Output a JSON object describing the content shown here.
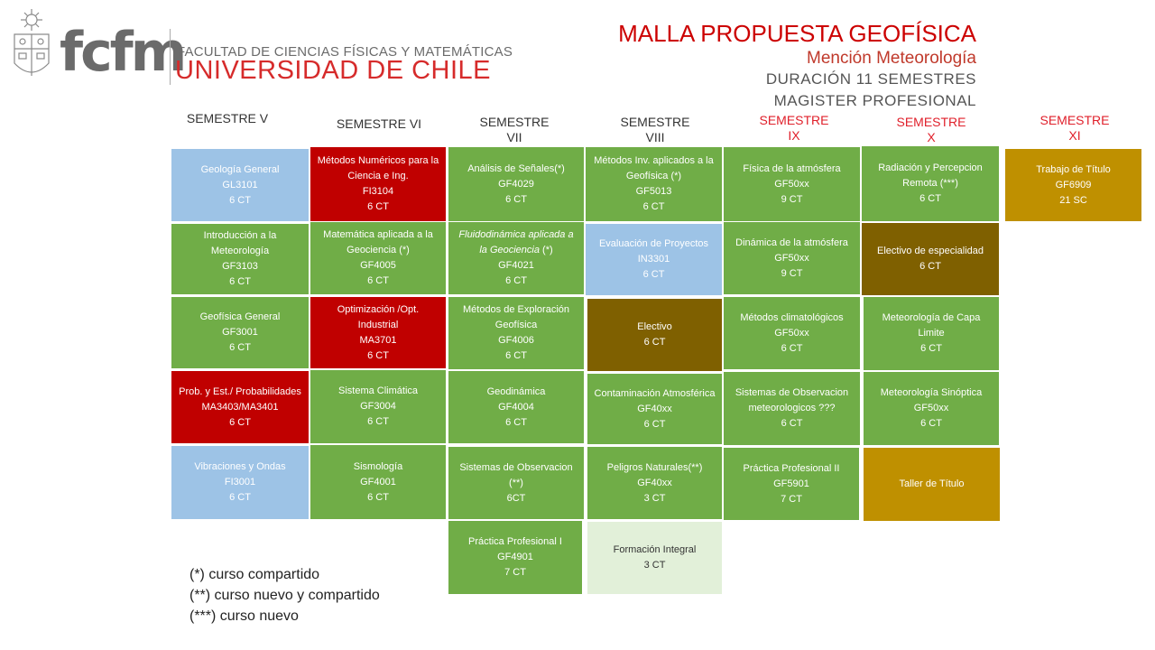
{
  "header": {
    "logo_text": "fcfm",
    "faculty": "FACULTAD DE CIENCIAS FÍSICAS Y MATEMÁTICAS",
    "university": "UNIVERSIDAD DE CHILE",
    "title": "MALLA PROPUESTA GEOFÍSICA",
    "mention": "Mención Meteorología",
    "duration": "DURACIÓN 11 SEMESTRES",
    "program": "MAGISTER PROFESIONAL"
  },
  "semesters": {
    "s5": "SEMESTRE V",
    "s6": "SEMESTRE VI",
    "s7": [
      "SEMESTRE",
      "VII"
    ],
    "s8": [
      "SEMESTRE",
      "VIII"
    ],
    "s9": [
      "SEMESTRE",
      "IX"
    ],
    "s10": [
      "SEMESTRE",
      "X"
    ],
    "s11": [
      "SEMESTRE",
      "XI"
    ]
  },
  "courses": {
    "c5_1": [
      "Geología General",
      "GL3101",
      "6 CT"
    ],
    "c5_2": [
      "Introducción a la Meteorología",
      "GF3103",
      "6 CT"
    ],
    "c5_3": [
      "Geofísica General",
      "GF3001",
      "6 CT"
    ],
    "c5_4": [
      "Prob. y Est./ Probabilidades",
      "MA3403/MA3401",
      "6 CT"
    ],
    "c5_5": [
      "Vibraciones y Ondas",
      "FI3001",
      "6 CT"
    ],
    "c6_1": [
      "Métodos Numéricos para la Ciencia e Ing.",
      "FI3104",
      "6 CT"
    ],
    "c6_2": [
      "Matemática aplicada a la Geociencia (*)",
      "GF4005",
      "6 CT"
    ],
    "c6_3": [
      "Optimización /Opt. Industrial",
      "MA3701",
      "6 CT"
    ],
    "c6_4": [
      "Sistema Climática",
      "GF3004",
      "6 CT"
    ],
    "c6_5": [
      "Sismología",
      "GF4001",
      "6 CT"
    ],
    "c7_1": [
      "Análisis de Señales(*)",
      "GF4029",
      "6 CT"
    ],
    "c7_2": [
      "Fluidodinámica aplicada a la Geociencia",
      "(*)",
      "GF4021",
      "6 CT"
    ],
    "c7_3": [
      "Métodos de Exploración Geofísica",
      "GF4006",
      "6 CT"
    ],
    "c7_4": [
      "Geodinámica",
      "GF4004",
      "6 CT"
    ],
    "c7_5": [
      "Sistemas de Observacion (**)",
      "6CT"
    ],
    "c7_6": [
      "Práctica Profesional I",
      "GF4901",
      "7 CT"
    ],
    "c8_1": [
      "Métodos Inv. aplicados a la Geofísica (*)",
      "GF5013",
      "6 CT"
    ],
    "c8_2": [
      "Evaluación de Proyectos",
      "IN3301",
      "6 CT"
    ],
    "c8_3": [
      "Electivo",
      "6 CT"
    ],
    "c8_4": [
      "Contaminación Atmosférica",
      "GF40xx",
      "6 CT"
    ],
    "c8_5": [
      "Peligros Naturales(**)",
      "GF40xx",
      "3 CT"
    ],
    "c8_6": [
      "Formación Integral",
      "3 CT"
    ],
    "c9_1": [
      "Física de la atmósfera",
      "GF50xx",
      "9 CT"
    ],
    "c9_2": [
      "Dinámica de la atmósfera",
      "GF50xx",
      "9 CT"
    ],
    "c9_3": [
      "Métodos climatológicos",
      "GF50xx",
      "6 CT"
    ],
    "c9_4": [
      "Sistemas de Observacion meteorologicos ???",
      "6 CT"
    ],
    "c9_5": [
      "Práctica Profesional II",
      "GF5901",
      "7 CT"
    ],
    "c10_1": [
      "Radiación y Percepcion Remota (***)",
      "6 CT"
    ],
    "c10_2": [
      "Electivo de especialidad",
      "6 CT"
    ],
    "c10_3": [
      "Meteorología de Capa Limite",
      "6 CT"
    ],
    "c10_4": [
      "Meteorología Sinóptica",
      "GF50xx",
      "6 CT"
    ],
    "c10_5": [
      "Taller de Título"
    ],
    "c11_1": [
      "Trabajo de Título",
      "GF6909",
      "21 SC"
    ]
  },
  "legend": {
    "l1": "(*) curso compartido",
    "l2": "(**) curso nuevo y compartido",
    "l3": "(***) curso nuevo"
  },
  "colors": {
    "green": "#70ad47",
    "blue": "#9dc3e6",
    "red": "#c00000",
    "brown": "#7f6000",
    "gold": "#bf9000",
    "light_green": "#e2f0d9",
    "title_red": "#cc0000"
  }
}
